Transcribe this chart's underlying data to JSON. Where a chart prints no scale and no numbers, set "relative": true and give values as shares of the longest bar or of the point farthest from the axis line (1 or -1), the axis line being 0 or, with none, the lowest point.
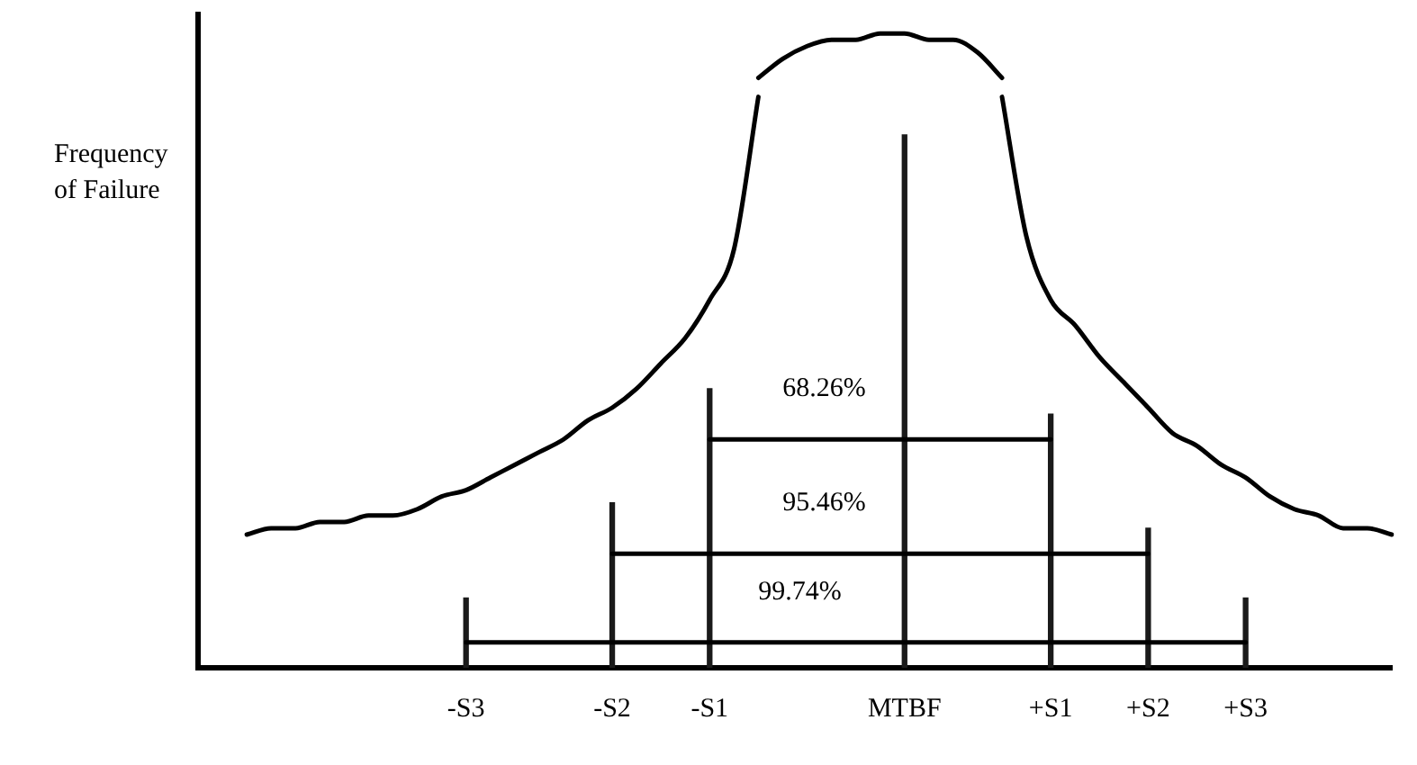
{
  "chart_data": {
    "type": "line",
    "relative": true,
    "ylabel": "Frequency of Failure",
    "tick_labels": "x",
    "grid": false,
    "legend": false,
    "marker": "none",
    "line_style": "solid",
    "categories": [
      null,
      null,
      null,
      null,
      null,
      null,
      null,
      null,
      null,
      null,
      null,
      "-S3",
      null,
      null,
      null,
      null,
      null,
      "-S2",
      null,
      null,
      null,
      "-S1",
      null,
      null,
      null,
      null,
      null,
      null,
      null,
      "MTBF",
      null,
      null,
      null,
      null,
      null,
      "+S1",
      null,
      null,
      null,
      "+S2",
      null,
      null,
      null,
      "+S3",
      null,
      null,
      null,
      null,
      null,
      null
    ],
    "series": [
      {
        "color": "#000000",
        "values": [
          null,
          null,
          0.21,
          0.22,
          0.22,
          0.23,
          0.23,
          0.24,
          0.24,
          0.25,
          0.27,
          0.28,
          0.3,
          0.32,
          0.34,
          0.36,
          0.39,
          0.41,
          0.44,
          0.48,
          0.52,
          0.58,
          0.66,
          0.9,
          null,
          null,
          null,
          null,
          null,
          null,
          null,
          null,
          null,
          null,
          null,
          null,
          null,
          null,
          null,
          null,
          null,
          null,
          null,
          null,
          null,
          null,
          null,
          null,
          null,
          null
        ]
      },
      {
        "color": "#000000",
        "values": [
          null,
          null,
          null,
          null,
          null,
          null,
          null,
          null,
          null,
          null,
          null,
          null,
          null,
          null,
          null,
          null,
          null,
          null,
          null,
          null,
          null,
          null,
          null,
          0.93,
          0.96,
          0.98,
          0.99,
          0.99,
          1.0,
          1.0,
          0.99,
          0.99,
          0.97,
          0.93,
          null,
          null,
          null,
          null,
          null,
          null,
          null,
          null,
          null,
          null,
          null,
          null,
          null,
          null,
          null,
          null
        ]
      },
      {
        "color": "#000000",
        "values": [
          null,
          null,
          null,
          null,
          null,
          null,
          null,
          null,
          null,
          null,
          null,
          null,
          null,
          null,
          null,
          null,
          null,
          null,
          null,
          null,
          null,
          null,
          null,
          null,
          null,
          null,
          null,
          null,
          null,
          null,
          null,
          null,
          null,
          0.9,
          0.68,
          0.58,
          0.54,
          0.49,
          0.45,
          0.41,
          0.37,
          0.35,
          0.32,
          0.3,
          0.27,
          0.25,
          0.24,
          0.22,
          0.22,
          0.21
        ]
      },
      {
        "type": "bar",
        "color": "#1a1a1a",
        "values": [
          null,
          null,
          null,
          null,
          null,
          null,
          null,
          null,
          null,
          null,
          null,
          0.11,
          null,
          null,
          null,
          null,
          null,
          0.26,
          null,
          null,
          null,
          0.44,
          null,
          null,
          null,
          null,
          null,
          null,
          null,
          0.84,
          null,
          null,
          null,
          null,
          null,
          0.4,
          null,
          null,
          null,
          0.22,
          null,
          null,
          null,
          0.11,
          null,
          null,
          null,
          null,
          null,
          null
        ]
      },
      {
        "color": "#000000",
        "values": [
          null,
          null,
          null,
          null,
          null,
          null,
          null,
          null,
          null,
          null,
          null,
          null,
          null,
          null,
          null,
          null,
          null,
          null,
          null,
          null,
          null,
          0.36,
          0.36,
          0.36,
          0.36,
          0.36,
          0.36,
          0.36,
          0.36,
          0.36,
          0.36,
          0.36,
          0.36,
          0.36,
          0.36,
          0.36,
          null,
          null,
          null,
          null,
          null,
          null,
          null,
          null,
          null,
          null,
          null,
          null,
          null,
          null
        ]
      },
      {
        "color": "#000000",
        "values": [
          null,
          null,
          null,
          null,
          null,
          null,
          null,
          null,
          null,
          null,
          null,
          null,
          null,
          null,
          null,
          null,
          null,
          0.18,
          0.18,
          0.18,
          0.18,
          0.18,
          0.18,
          0.18,
          0.18,
          0.18,
          0.18,
          0.18,
          0.18,
          0.18,
          0.18,
          0.18,
          0.18,
          0.18,
          0.18,
          0.18,
          0.18,
          0.18,
          0.18,
          0.18,
          null,
          null,
          null,
          null,
          null,
          null,
          null,
          null,
          null,
          null
        ]
      },
      {
        "color": "#000000",
        "values": [
          null,
          null,
          null,
          null,
          null,
          null,
          null,
          null,
          null,
          null,
          null,
          0.04,
          0.04,
          0.04,
          0.04,
          0.04,
          0.04,
          0.04,
          0.04,
          0.04,
          0.04,
          0.04,
          0.04,
          0.04,
          0.04,
          0.04,
          0.04,
          0.04,
          0.04,
          0.04,
          0.04,
          0.04,
          0.04,
          0.04,
          0.04,
          0.04,
          0.04,
          0.04,
          0.04,
          0.04,
          0.04,
          0.04,
          0.04,
          0.04,
          null,
          null,
          null,
          null,
          null,
          null
        ]
      }
    ],
    "annotations": [
      "68.26%",
      "95.46%",
      "99.74%"
    ]
  }
}
